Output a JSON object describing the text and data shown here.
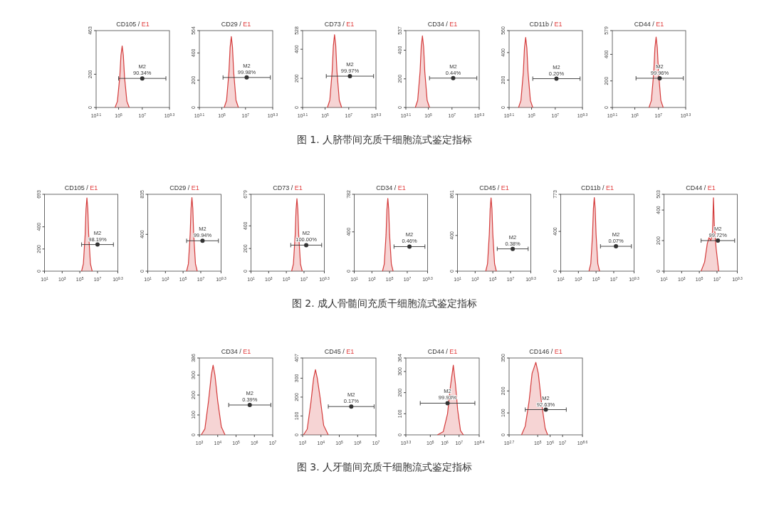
{
  "chart_data": [
    {
      "type": "area",
      "title": "CD105 / E1",
      "log": "x",
      "xlim": [
        1259,
        1995262315
      ],
      "xticks": [
        {
          "value": 1259,
          "label": "10$^{3.1}$"
        },
        {
          "value": 100000,
          "label": "10$^{5}$"
        },
        {
          "value": 10000000,
          "label": "10$^{7}$"
        },
        {
          "value": 1995262315,
          "label": "10$^{9.3}$"
        }
      ],
      "ylim": [
        0,
        463
      ],
      "yticks": [
        0,
        200,
        463
      ],
      "series": [
        {
          "color": "#d43b3b",
          "x": [
            50100.0,
            79400.0,
            126000.0,
            158000.0,
            200000.0,
            251000.0,
            316000.0,
            501000.0,
            794000.0
          ],
          "values": [
            0,
            37,
            185,
            315,
            370,
            315,
            185,
            37,
            0
          ]
        },
        {
          "type": "scatter",
          "name": "M2",
          "color": "#333333",
          "x": [
            10000000.0
          ],
          "values": [
            175
          ],
          "xerrors": [
            [
              100000.0,
              1000000000.0
            ]
          ]
        }
      ],
      "annotations": [
        {
          "text": "90.34%",
          "x": 10000000.0,
          "y": 175
        }
      ]
    },
    {
      "type": "area",
      "title": "CD29 / E1",
      "log": "x",
      "xlim": [
        1259,
        1995262315
      ],
      "xticks": [
        {
          "value": 1259,
          "label": "10$^{3.1}$"
        },
        {
          "value": 100000,
          "label": "10$^{5}$"
        },
        {
          "value": 10000000,
          "label": "10$^{7}$"
        },
        {
          "value": 1995262315,
          "label": "10$^{9.3}$"
        }
      ],
      "ylim": [
        0,
        564
      ],
      "yticks": [
        0,
        200,
        400,
        564
      ],
      "series": [
        {
          "color": "#d43b3b",
          "x": [
            158000.0,
            251000.0,
            398000.0,
            501000.0,
            631000.0,
            794000.0,
            1000000.0,
            1580000.0,
            2510000.0
          ],
          "values": [
            0,
            52,
            260,
            442,
            520,
            442,
            260,
            52,
            0
          ]
        },
        {
          "type": "scatter",
          "name": "M2",
          "color": "#333333",
          "x": [
            12600000.0
          ],
          "values": [
            220
          ],
          "xerrors": [
            [
              126000.0,
              1260000000.0
            ]
          ]
        }
      ],
      "annotations": [
        {
          "text": "99.98%",
          "x": 12600000.0,
          "y": 220
        }
      ]
    },
    {
      "type": "area",
      "title": "CD73 / E1",
      "log": "x",
      "xlim": [
        1259,
        1995262315
      ],
      "xticks": [
        {
          "value": 1259,
          "label": "10$^{3.1}$"
        },
        {
          "value": 100000,
          "label": "10$^{5}$"
        },
        {
          "value": 10000000,
          "label": "10$^{7}$"
        },
        {
          "value": 1995262315,
          "label": "10$^{9.3}$"
        }
      ],
      "ylim": [
        0,
        528
      ],
      "yticks": [
        0,
        200,
        400,
        528
      ],
      "series": [
        {
          "color": "#d43b3b",
          "x": [
            158000.0,
            251000.0,
            398000.0,
            501000.0,
            631000.0,
            794000.0,
            1000000.0,
            1580000.0,
            2510000.0
          ],
          "values": [
            0,
            50,
            250,
            425,
            500,
            425,
            250,
            50,
            0
          ]
        },
        {
          "type": "scatter",
          "name": "M2",
          "color": "#333333",
          "x": [
            12600000.0
          ],
          "values": [
            215
          ],
          "xerrors": [
            [
              126000.0,
              1260000000.0
            ]
          ]
        }
      ],
      "annotations": [
        {
          "text": "99.97%",
          "x": 12600000.0,
          "y": 215
        }
      ]
    },
    {
      "type": "area",
      "title": "CD34 / E1",
      "log": "x",
      "xlim": [
        1259,
        1995262315
      ],
      "xticks": [
        {
          "value": 1259,
          "label": "10$^{3.1}$"
        },
        {
          "value": 100000,
          "label": "10$^{5}$"
        },
        {
          "value": 10000000,
          "label": "10$^{7}$"
        },
        {
          "value": 1995262315,
          "label": "10$^{9.3}$"
        }
      ],
      "ylim": [
        0,
        537
      ],
      "yticks": [
        0,
        200,
        400,
        537
      ],
      "series": [
        {
          "color": "#d43b3b",
          "x": [
            7940.0,
            12600.0,
            20000.0,
            25100.0,
            31600.0,
            39800.0,
            50100.0,
            79400.0,
            126000.0
          ],
          "values": [
            0,
            50,
            250,
            425,
            500,
            425,
            250,
            50,
            0
          ]
        },
        {
          "type": "scatter",
          "name": "M2",
          "color": "#333333",
          "x": [
            12600000.0
          ],
          "values": [
            205
          ],
          "xerrors": [
            [
              126000.0,
              1260000000.0
            ]
          ]
        }
      ],
      "annotations": [
        {
          "text": "0.44%",
          "x": 12600000.0,
          "y": 205
        }
      ]
    },
    {
      "type": "area",
      "title": "CD11b / E1",
      "log": "x",
      "xlim": [
        1259,
        1995262315
      ],
      "xticks": [
        {
          "value": 1259,
          "label": "10$^{3.1}$"
        },
        {
          "value": 100000,
          "label": "10$^{5}$"
        },
        {
          "value": 10000000,
          "label": "10$^{7}$"
        },
        {
          "value": 1995262315,
          "label": "10$^{9.3}$"
        }
      ],
      "ylim": [
        0,
        560
      ],
      "yticks": [
        0,
        200,
        400,
        560
      ],
      "series": [
        {
          "color": "#d43b3b",
          "x": [
            7940.0,
            12600.0,
            20000.0,
            25100.0,
            31600.0,
            39800.0,
            50100.0,
            79400.0,
            126000.0
          ],
          "values": [
            0,
            51,
            255,
            434,
            510,
            434,
            255,
            51,
            0
          ]
        },
        {
          "type": "scatter",
          "name": "M2",
          "color": "#333333",
          "x": [
            12600000.0
          ],
          "values": [
            210
          ],
          "xerrors": [
            [
              126000.0,
              1260000000.0
            ]
          ]
        }
      ],
      "annotations": [
        {
          "text": "0.20%",
          "x": 12600000.0,
          "y": 210
        }
      ]
    },
    {
      "type": "area",
      "title": "CD44 / E1",
      "log": "x",
      "xlim": [
        1259,
        1995262315
      ],
      "xticks": [
        {
          "value": 1259,
          "label": "10$^{3.1}$"
        },
        {
          "value": 100000,
          "label": "10$^{5}$"
        },
        {
          "value": 10000000,
          "label": "10$^{7}$"
        },
        {
          "value": 1995262315,
          "label": "10$^{9.3}$"
        }
      ],
      "ylim": [
        0,
        579
      ],
      "yticks": [
        0,
        200,
        400,
        579
      ],
      "series": [
        {
          "color": "#d43b3b",
          "x": [
            1580000.0,
            2510000.0,
            3980000.0,
            5010000.0,
            6310000.0,
            7940000.0,
            10000000.0,
            15800000.0,
            25100000.0
          ],
          "values": [
            0,
            53,
            265,
            450,
            530,
            450,
            265,
            53,
            0
          ]
        },
        {
          "type": "scatter",
          "name": "M2",
          "color": "#333333",
          "x": [
            12600000.0
          ],
          "values": [
            220
          ],
          "xerrors": [
            [
              126000.0,
              1260000000.0
            ]
          ]
        }
      ],
      "annotations": [
        {
          "text": "99.96%",
          "x": 12600000.0,
          "y": 220
        },
        "图 1. 人脐带间充质干细胞流式鉴定指标"
      ]
    },
    {
      "type": "area",
      "title": "CD105 / E1",
      "log": "x",
      "xlim": [
        10,
        1995262315
      ],
      "xticks": [
        {
          "value": 10,
          "label": "10$^{1}$"
        },
        {
          "value": 1000,
          "label": "10$^{3}$"
        },
        {
          "value": 100000,
          "label": "10$^{5}$"
        },
        {
          "value": 10000000,
          "label": "10$^{7}$"
        },
        {
          "value": 1995262315,
          "label": "10$^{9.3}$"
        }
      ],
      "ylim": [
        0,
        693
      ],
      "yticks": [
        0,
        200,
        400,
        693
      ],
      "series": [
        {
          "color": "#d43b3b",
          "x": [
            158000.0,
            251000.0,
            398000.0,
            501000.0,
            631000.0,
            794000.0,
            1000000.0,
            1580000.0,
            2510000.0
          ],
          "values": [
            0,
            66,
            330,
            561,
            660,
            561,
            330,
            66,
            0
          ]
        },
        {
          "type": "scatter",
          "name": "M2",
          "color": "#333333",
          "x": [
            10000000.0
          ],
          "values": [
            240
          ],
          "xerrors": [
            [
              158000.0,
              631000000.0
            ]
          ]
        }
      ],
      "annotations": [
        {
          "text": "98.19%",
          "x": 10000000.0,
          "y": 240
        }
      ]
    },
    {
      "type": "area",
      "title": "CD29 / E1",
      "log": "x",
      "xlim": [
        10,
        1995262315
      ],
      "xticks": [
        {
          "value": 10,
          "label": "10$^{1}$"
        },
        {
          "value": 1000,
          "label": "10$^{3}$"
        },
        {
          "value": 100000,
          "label": "10$^{5}$"
        },
        {
          "value": 10000000,
          "label": "10$^{7}$"
        },
        {
          "value": 1995262315,
          "label": "10$^{9.3}$"
        }
      ],
      "ylim": [
        0,
        835
      ],
      "yticks": [
        0,
        400,
        835
      ],
      "series": [
        {
          "color": "#d43b3b",
          "x": [
            251000.0,
            398000.0,
            631000.0,
            794000.0,
            1000000.0,
            1260000.0,
            1580000.0,
            2510000.0,
            3980000.0
          ],
          "values": [
            0,
            80,
            400,
            680,
            800,
            680,
            400,
            80,
            0
          ]
        },
        {
          "type": "scatter",
          "name": "M2",
          "color": "#333333",
          "x": [
            15800000.0
          ],
          "values": [
            330
          ],
          "xerrors": [
            [
              251000.0,
              1000000000.0
            ]
          ]
        }
      ],
      "annotations": [
        {
          "text": "99.94%",
          "x": 15800000.0,
          "y": 330
        }
      ]
    },
    {
      "type": "area",
      "title": "CD73 / E1",
      "log": "x",
      "xlim": [
        10,
        1995262315
      ],
      "xticks": [
        {
          "value": 10,
          "label": "10$^{1}$"
        },
        {
          "value": 1000,
          "label": "10$^{3}$"
        },
        {
          "value": 100000,
          "label": "10$^{5}$"
        },
        {
          "value": 10000000,
          "label": "10$^{7}$"
        },
        {
          "value": 1995262315,
          "label": "10$^{9.3}$"
        }
      ],
      "ylim": [
        0,
        679
      ],
      "yticks": [
        0,
        200,
        400,
        679
      ],
      "series": [
        {
          "color": "#d43b3b",
          "x": [
            398000.0,
            631000.0,
            1000000.0,
            1260000.0,
            1580000.0,
            2000000.0,
            2510000.0,
            3980000.0,
            6310000.0
          ],
          "values": [
            0,
            64,
            320,
            544,
            640,
            544,
            320,
            64,
            0
          ]
        },
        {
          "type": "scatter",
          "name": "M2",
          "color": "#333333",
          "x": [
            17800000.0
          ],
          "values": [
            230
          ],
          "xerrors": [
            [
              316000.0,
              1000000000.0
            ]
          ]
        }
      ],
      "annotations": [
        {
          "text": "100.00%",
          "x": 17800000.0,
          "y": 230
        }
      ]
    },
    {
      "type": "area",
      "title": "CD34 / E1",
      "log": "x",
      "xlim": [
        10,
        1995262315
      ],
      "xticks": [
        {
          "value": 10,
          "label": "10$^{1}$"
        },
        {
          "value": 1000,
          "label": "10$^{3}$"
        },
        {
          "value": 100000,
          "label": "10$^{5}$"
        },
        {
          "value": 10000000,
          "label": "10$^{7}$"
        },
        {
          "value": 1995262315,
          "label": "10$^{9.3}$"
        }
      ],
      "ylim": [
        0,
        782
      ],
      "yticks": [
        0,
        400,
        782
      ],
      "series": [
        {
          "color": "#d43b3b",
          "x": [
            15800.0,
            25100.0,
            39800.0,
            50100.0,
            63100.0,
            79400.0,
            100000.0,
            158000.0,
            251000.0
          ],
          "values": [
            0,
            74,
            370,
            629,
            740,
            629,
            370,
            74,
            0
          ]
        },
        {
          "type": "scatter",
          "name": "M2",
          "color": "#333333",
          "x": [
            17800000.0
          ],
          "values": [
            250
          ],
          "xerrors": [
            [
              316000.0,
              1000000000.0
            ]
          ]
        }
      ],
      "annotations": [
        {
          "text": "0.46%",
          "x": 17800000.0,
          "y": 250
        }
      ]
    },
    {
      "type": "area",
      "title": "CD45 / E1",
      "log": "x",
      "xlim": [
        10,
        1995262315
      ],
      "xticks": [
        {
          "value": 10,
          "label": "10$^{1}$"
        },
        {
          "value": 1000,
          "label": "10$^{3}$"
        },
        {
          "value": 100000,
          "label": "10$^{5}$"
        },
        {
          "value": 10000000,
          "label": "10$^{7}$"
        },
        {
          "value": 1995262315,
          "label": "10$^{9.3}$"
        }
      ],
      "ylim": [
        0,
        861
      ],
      "yticks": [
        0,
        400,
        861
      ],
      "series": [
        {
          "color": "#d43b3b",
          "x": [
            15800.0,
            25100.0,
            39800.0,
            50100.0,
            63100.0,
            79400.0,
            100000.0,
            158000.0,
            251000.0
          ],
          "values": [
            0,
            82,
            410,
            697,
            820,
            697,
            410,
            82,
            0
          ]
        },
        {
          "type": "scatter",
          "name": "M2",
          "color": "#333333",
          "x": [
            17800000.0
          ],
          "values": [
            250
          ],
          "xerrors": [
            [
              316000.0,
              1000000000.0
            ]
          ]
        }
      ],
      "annotations": [
        {
          "text": "0.38%",
          "x": 17800000.0,
          "y": 250
        }
      ]
    },
    {
      "type": "area",
      "title": "CD11b / E1",
      "log": "x",
      "xlim": [
        10,
        1995262315
      ],
      "xticks": [
        {
          "value": 10,
          "label": "10$^{1}$"
        },
        {
          "value": 1000,
          "label": "10$^{3}$"
        },
        {
          "value": 100000,
          "label": "10$^{5}$"
        },
        {
          "value": 10000000,
          "label": "10$^{7}$"
        },
        {
          "value": 1995262315,
          "label": "10$^{9.3}$"
        }
      ],
      "ylim": [
        0,
        773
      ],
      "yticks": [
        0,
        400,
        773
      ],
      "series": [
        {
          "color": "#d43b3b",
          "x": [
            15800.0,
            25100.0,
            39800.0,
            50100.0,
            63100.0,
            79400.0,
            100000.0,
            158000.0,
            251000.0
          ],
          "values": [
            0,
            74,
            370,
            629,
            740,
            629,
            370,
            74,
            0
          ]
        },
        {
          "type": "scatter",
          "name": "M2",
          "color": "#333333",
          "x": [
            17800000.0
          ],
          "values": [
            250
          ],
          "xerrors": [
            [
              316000.0,
              1000000000.0
            ]
          ]
        }
      ],
      "annotations": [
        {
          "text": "0.07%",
          "x": 17800000.0,
          "y": 250
        }
      ]
    },
    {
      "type": "area",
      "title": "CD44 / E1",
      "log": "x",
      "xlim": [
        10,
        1995262315
      ],
      "xticks": [
        {
          "value": 10,
          "label": "10$^{1}$"
        },
        {
          "value": 1000,
          "label": "10$^{3}$"
        },
        {
          "value": 100000,
          "label": "10$^{5}$"
        },
        {
          "value": 10000000,
          "label": "10$^{7}$"
        },
        {
          "value": 1995262315,
          "label": "10$^{9.3}$"
        }
      ],
      "ylim": [
        0,
        503
      ],
      "yticks": [
        0,
        200,
        400,
        503
      ],
      "series": [
        {
          "color": "#d43b3b",
          "x": [
            158000.0,
            398000.0,
            794000.0,
            1260000.0,
            2000000.0,
            3160000.0,
            3980000.0,
            5010000.0,
            7940000.0,
            15800000.0
          ],
          "values": [
            0,
            60,
            180,
            220,
            200,
            260,
            480,
            300,
            150,
            0
          ]
        },
        {
          "type": "scatter",
          "name": "M2",
          "color": "#333333",
          "x": [
            12600000.0
          ],
          "values": [
            200
          ],
          "xerrors": [
            [
              158000.0,
              1000000000.0
            ]
          ]
        }
      ],
      "annotations": [
        {
          "text": "99.72%",
          "x": 12600000.0,
          "y": 200
        },
        "图 2. 成人骨髓间充质干细胞流式鉴定指标"
      ]
    },
    {
      "type": "area",
      "title": "CD34 / E1",
      "log": "x",
      "xlim": [
        1000,
        10000000
      ],
      "xticks": [
        {
          "value": 1000,
          "label": "10$^{3}$"
        },
        {
          "value": 10000,
          "label": "10$^{4}$"
        },
        {
          "value": 100000,
          "label": "10$^{5}$"
        },
        {
          "value": 1000000,
          "label": "10$^{6}$"
        },
        {
          "value": 10000000,
          "label": "10$^{7}$"
        }
      ],
      "ylim": [
        0,
        386
      ],
      "yticks": [
        0,
        100,
        200,
        300,
        386
      ],
      "series": [
        {
          "color": "#d43b3b",
          "x": [
            1260.0,
            2000.0,
            3160.0,
            4470.0,
            5620.0,
            7080.0,
            10000.0,
            15800.0,
            25100.0
          ],
          "values": [
            0,
            30,
            170,
            300,
            350,
            300,
            170,
            40,
            0
          ]
        },
        {
          "type": "scatter",
          "name": "M2",
          "color": "#333333",
          "x": [
            560000.0
          ],
          "values": [
            150
          ],
          "xerrors": [
            [
              39800.0,
              7940000.0
            ]
          ]
        }
      ],
      "annotations": [
        {
          "text": "0.39%",
          "x": 560000.0,
          "y": 150
        }
      ]
    },
    {
      "type": "area",
      "title": "CD45 / E1",
      "log": "x",
      "xlim": [
        1000,
        10000000
      ],
      "xticks": [
        {
          "value": 1000,
          "label": "10$^{3}$"
        },
        {
          "value": 10000,
          "label": "10$^{4}$"
        },
        {
          "value": 100000,
          "label": "10$^{5}$"
        },
        {
          "value": 1000000,
          "label": "10$^{6}$"
        },
        {
          "value": 10000000,
          "label": "10$^{7}$"
        }
      ],
      "ylim": [
        0,
        407
      ],
      "yticks": [
        0,
        100,
        200,
        300,
        407
      ],
      "series": [
        {
          "color": "#d43b3b",
          "x": [
            1120.0,
            1780.0,
            2820.0,
            3980.0,
            5010.0,
            6310.0,
            8910.0,
            14100.0,
            25100.0
          ],
          "values": [
            0,
            30,
            170,
            300,
            345,
            300,
            200,
            50,
            0
          ]
        },
        {
          "type": "scatter",
          "name": "M2",
          "color": "#333333",
          "x": [
            450000.0
          ],
          "values": [
            150
          ],
          "xerrors": [
            [
              25100.0,
              7940000.0
            ]
          ]
        }
      ],
      "annotations": [
        {
          "text": "0.17%",
          "x": 450000.0,
          "y": 150
        }
      ]
    },
    {
      "type": "area",
      "title": "CD44 / E1",
      "log": "x",
      "xlim": [
        1995,
        251188643
      ],
      "xticks": [
        {
          "value": 1995,
          "label": "10$^{3.3}$"
        },
        {
          "value": 100000,
          "label": "10$^{5}$"
        },
        {
          "value": 1000000,
          "label": "10$^{6}$"
        },
        {
          "value": 10000000,
          "label": "10$^{7}$"
        },
        {
          "value": 251188643,
          "label": "10$^{8.4}$"
        }
      ],
      "ylim": [
        0,
        364
      ],
      "yticks": [
        0,
        100,
        200,
        300,
        364
      ],
      "series": [
        {
          "color": "#d43b3b",
          "x": [
            316000.0,
            794000.0,
            1580000.0,
            2510000.0,
            3980000.0,
            5620000.0,
            7940000.0,
            12600000.0,
            20000000.0
          ],
          "values": [
            0,
            15,
            100,
            230,
            330,
            240,
            120,
            20,
            0
          ]
        },
        {
          "type": "scatter",
          "name": "M2",
          "color": "#333333",
          "x": [
            1580000.0
          ],
          "values": [
            150
          ],
          "xerrors": [
            [
              20000.0,
              126000000.0
            ]
          ]
        }
      ],
      "annotations": [
        {
          "text": "99.93%",
          "x": 1580000.0,
          "y": 150
        }
      ]
    },
    {
      "type": "area",
      "title": "CD146 / E1",
      "log": "x",
      "xlim": [
        501,
        398107171
      ],
      "xticks": [
        {
          "value": 501,
          "label": "10$^{2.7}$"
        },
        {
          "value": 100000,
          "label": "10$^{5}$"
        },
        {
          "value": 1000000,
          "label": "10$^{6}$"
        },
        {
          "value": 10000000,
          "label": "10$^{7}$"
        },
        {
          "value": 398107171,
          "label": "10$^{8.6}$"
        }
      ],
      "ylim": [
        0,
        350
      ],
      "yticks": [
        0,
        100,
        200,
        350
      ],
      "series": [
        {
          "color": "#d43b3b",
          "x": [
            5010.0,
            10000.0,
            20000.0,
            35500.0,
            70800.0,
            112000.0,
            200000.0,
            398000.0,
            631000.0
          ],
          "values": [
            0,
            40,
            150,
            280,
            330,
            280,
            150,
            30,
            0
          ]
        },
        {
          "type": "scatter",
          "name": "M2",
          "color": "#333333",
          "x": [
            450000.0
          ],
          "values": [
            115
          ],
          "xerrors": [
            [
              10000.0,
              20000000.0
            ]
          ]
        }
      ],
      "annotations": [
        {
          "text": "92.63%",
          "x": 450000.0,
          "y": 115
        },
        "图 3. 人牙髓间充质干细胞流式鉴定指标"
      ]
    }
  ]
}
